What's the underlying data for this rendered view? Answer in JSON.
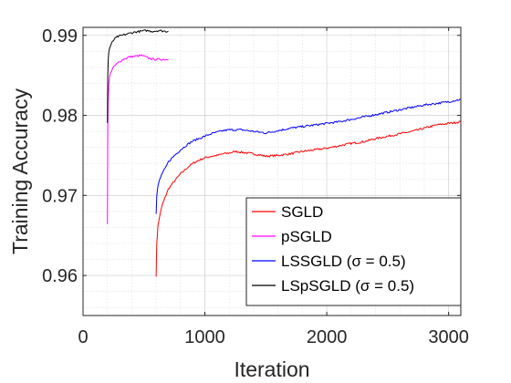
{
  "chart_data": {
    "type": "line",
    "title": "",
    "xlabel": "Iteration",
    "ylabel": "Training Accuracy",
    "xlim": [
      0,
      3100
    ],
    "ylim": [
      0.955,
      0.991
    ],
    "xticks": [
      0,
      1000,
      2000,
      3000
    ],
    "xtick_labels": [
      "0",
      "1000",
      "2000",
      "3000"
    ],
    "yticks": [
      0.96,
      0.97,
      0.98,
      0.99
    ],
    "ytick_labels": [
      "0.96",
      "0.97",
      "0.98",
      "0.99"
    ],
    "grid": true,
    "minor_grid": true,
    "legend_position": "bottom-right",
    "series": [
      {
        "name": "SGLD",
        "color": "#ff0000",
        "x": [
          600,
          605,
          615,
          630,
          650,
          680,
          700,
          750,
          800,
          850,
          900,
          950,
          1000,
          1050,
          1100,
          1150,
          1200,
          1250,
          1300,
          1400,
          1500,
          1600,
          1700,
          1800,
          1900,
          2000,
          2100,
          2200,
          2300,
          2400,
          2500,
          2600,
          2700,
          2800,
          2900,
          3000,
          3100
        ],
        "y": [
          0.96,
          0.964,
          0.9662,
          0.9675,
          0.9688,
          0.97,
          0.9708,
          0.9718,
          0.9727,
          0.9734,
          0.974,
          0.9744,
          0.9747,
          0.9749,
          0.975,
          0.9752,
          0.9753,
          0.9755,
          0.9754,
          0.9752,
          0.9749,
          0.975,
          0.9752,
          0.9755,
          0.9757,
          0.9759,
          0.9762,
          0.9765,
          0.9767,
          0.9771,
          0.9774,
          0.9777,
          0.978,
          0.9784,
          0.9788,
          0.979,
          0.9792
        ]
      },
      {
        "name": "pSGLD",
        "color": "#ff00ff",
        "x": [
          200,
          203,
          207,
          212,
          218,
          225,
          240,
          260,
          290,
          330,
          380,
          430,
          480,
          530,
          580,
          640,
          700
        ],
        "y": [
          0.9665,
          0.978,
          0.982,
          0.984,
          0.9848,
          0.9853,
          0.9858,
          0.9862,
          0.9866,
          0.987,
          0.9873,
          0.9874,
          0.9875,
          0.9872,
          0.987,
          0.987,
          0.987
        ]
      },
      {
        "name": "LSSGLD (σ = 0.5)",
        "color": "#0000ff",
        "x": [
          600,
          605,
          615,
          630,
          650,
          680,
          700,
          750,
          800,
          850,
          900,
          950,
          1000,
          1050,
          1100,
          1150,
          1200,
          1300,
          1400,
          1500,
          1600,
          1700,
          1800,
          1900,
          2000,
          2100,
          2200,
          2300,
          2400,
          2500,
          2600,
          2700,
          2800,
          2900,
          3000,
          3100
        ],
        "y": [
          0.9678,
          0.97,
          0.9712,
          0.972,
          0.9728,
          0.9735,
          0.9742,
          0.975,
          0.9757,
          0.9763,
          0.9768,
          0.9771,
          0.9774,
          0.9777,
          0.9779,
          0.9781,
          0.9782,
          0.9782,
          0.978,
          0.9778,
          0.9781,
          0.9784,
          0.9786,
          0.9788,
          0.979,
          0.9792,
          0.9795,
          0.9798,
          0.9801,
          0.9804,
          0.9807,
          0.981,
          0.9813,
          0.9815,
          0.9817,
          0.982
        ]
      },
      {
        "name": "LSpSGLD (σ = 0.5)",
        "color": "#000000",
        "x": [
          200,
          203,
          207,
          212,
          220,
          235,
          255,
          280,
          320,
          370,
          420,
          470,
          520,
          570,
          620,
          680,
          700
        ],
        "y": [
          0.979,
          0.985,
          0.987,
          0.988,
          0.9885,
          0.989,
          0.9895,
          0.9898,
          0.99,
          0.9902,
          0.9904,
          0.9905,
          0.9906,
          0.9905,
          0.9906,
          0.9905,
          0.9905
        ]
      }
    ]
  }
}
